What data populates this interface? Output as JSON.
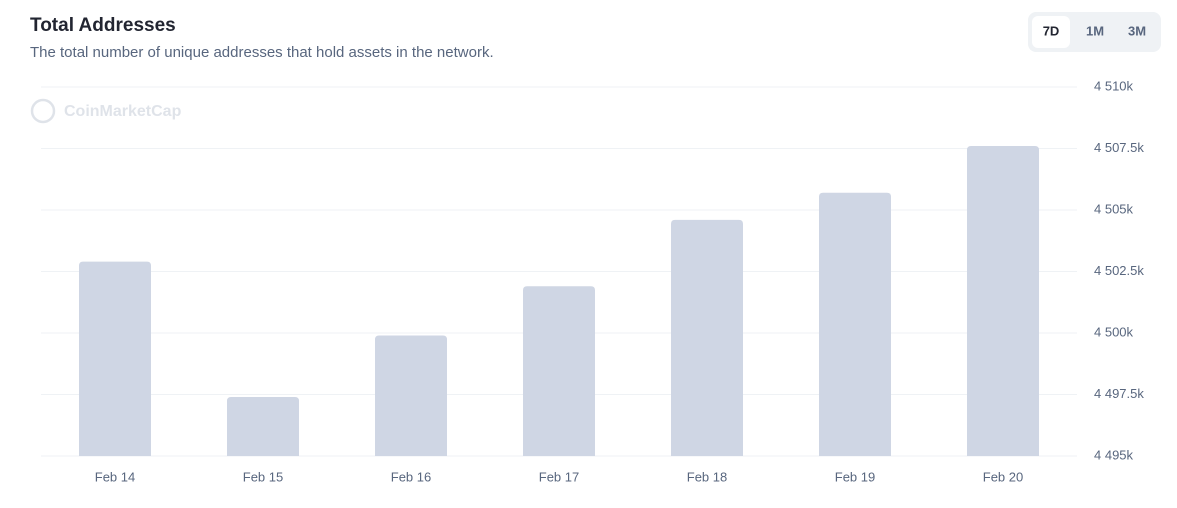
{
  "chart_data": {
    "type": "bar",
    "title": "Total Addresses",
    "subtitle": "The total number of unique addresses that hold assets in the network.",
    "watermark": "CoinMarketCap",
    "categories": [
      "Feb 14",
      "Feb 15",
      "Feb 16",
      "Feb 17",
      "Feb 18",
      "Feb 19",
      "Feb 20"
    ],
    "values": [
      4502.9,
      4497.4,
      4499.9,
      4501.9,
      4504.6,
      4505.7,
      4507.6
    ],
    "color": "#cfd6e4",
    "ylim": [
      4495,
      4510
    ],
    "yticks": [
      {
        "value": 4495,
        "label": "4 495k"
      },
      {
        "value": 4497.5,
        "label": "4 497.5k"
      },
      {
        "value": 4500,
        "label": "4 500k"
      },
      {
        "value": 4502.5,
        "label": "4 502.5k"
      },
      {
        "value": 4505,
        "label": "4 505k"
      },
      {
        "value": 4507.5,
        "label": "4 507.5k"
      },
      {
        "value": 4510,
        "label": "4 510k"
      }
    ],
    "grid": true
  },
  "controls": {
    "range_buttons": [
      "7D",
      "1M",
      "3M"
    ]
  }
}
